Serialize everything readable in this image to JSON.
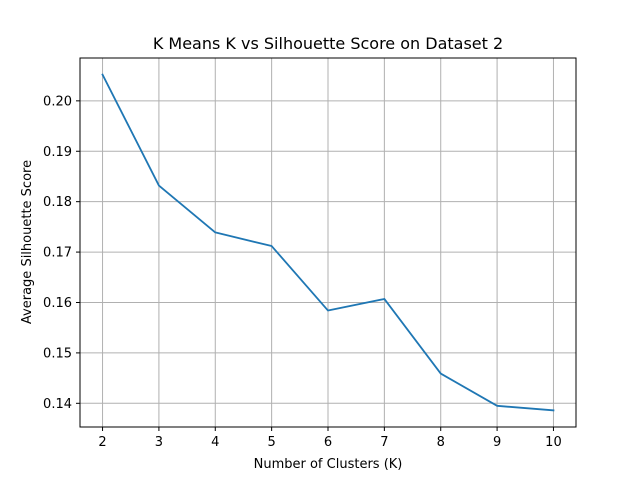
{
  "chart_data": {
    "type": "line",
    "title": "K Means K vs Silhouette Score on Dataset 2",
    "xlabel": "Number of Clusters (K)",
    "ylabel": "Average Silhouette Score",
    "x": [
      2,
      3,
      4,
      5,
      6,
      7,
      8,
      9,
      10
    ],
    "series": [
      {
        "values": [
          0.2052,
          0.1832,
          0.1739,
          0.1712,
          0.1584,
          0.1607,
          0.1459,
          0.1395,
          0.1386
        ],
        "color": "#1f77b4"
      }
    ],
    "xlim": [
      1.6,
      10.4
    ],
    "ylim": [
      0.1353,
      0.2085
    ],
    "x_ticks": [
      2,
      3,
      4,
      5,
      6,
      7,
      8,
      9,
      10
    ],
    "x_tick_labels": [
      "2",
      "3",
      "4",
      "5",
      "6",
      "7",
      "8",
      "9",
      "10"
    ],
    "y_ticks": [
      0.14,
      0.15,
      0.16,
      0.17,
      0.18,
      0.19,
      0.2
    ],
    "y_tick_labels": [
      "0.14",
      "0.15",
      "0.16",
      "0.17",
      "0.18",
      "0.19",
      "0.20"
    ],
    "grid": true,
    "grid_color": "#b0b0b0",
    "legend": "none"
  }
}
